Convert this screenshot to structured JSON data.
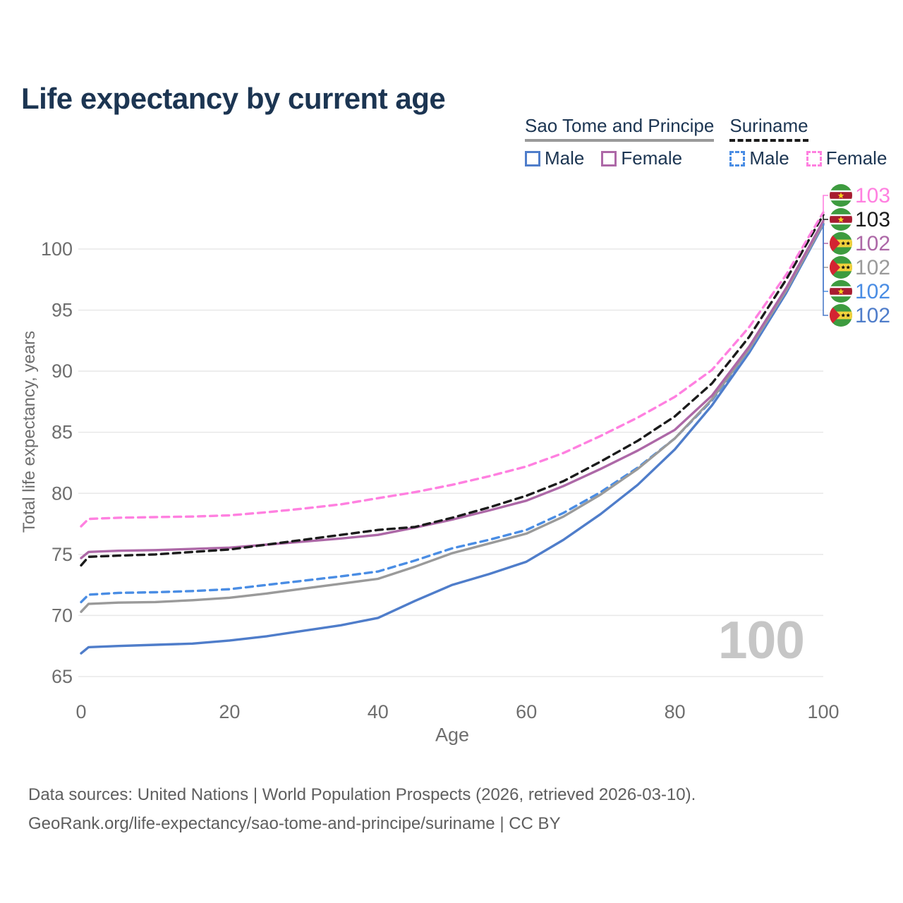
{
  "title": "Life expectancy by current age",
  "watermark": "100",
  "footer": {
    "line1": "Data sources: United Nations | World Population Prospects (2026, retrieved 2026-03-10).",
    "line2": "GeoRank.org/life-expectancy/sao-tome-and-principe/suriname | CC BY"
  },
  "legend": {
    "groups": [
      {
        "name": "Sao Tome and Principe",
        "line_style": "solid",
        "underline_color": "#9a9a9a",
        "items": [
          {
            "label": "Male",
            "color": "#4f7dca"
          },
          {
            "label": "Female",
            "color": "#ad68a7"
          }
        ]
      },
      {
        "name": "Suriname",
        "line_style": "dashed",
        "underline_color": "#1b1b1b",
        "items": [
          {
            "label": "Male",
            "color": "#4a8de4"
          },
          {
            "label": "Female",
            "color": "#ff80e0"
          }
        ]
      }
    ]
  },
  "chart_data": {
    "type": "line",
    "title": "Life expectancy by current age",
    "xlabel": "Age",
    "ylabel": "Total life expectancy, years",
    "xlim": [
      0,
      100
    ],
    "ylim": [
      63.5,
      104.5
    ],
    "xticks": [
      0,
      20,
      40,
      60,
      80,
      100
    ],
    "yticks": [
      65,
      70,
      75,
      80,
      85,
      90,
      95,
      100
    ],
    "grid": "horizontal-only",
    "legend_position": "top-right",
    "x": [
      0,
      1,
      5,
      10,
      15,
      20,
      25,
      30,
      35,
      40,
      45,
      50,
      55,
      60,
      65,
      70,
      75,
      80,
      85,
      90,
      95,
      100
    ],
    "series": [
      {
        "name": "Suriname Female",
        "country": "Suriname",
        "sex": "female",
        "flag": "suriname",
        "color": "#ff80e0",
        "dash": true,
        "end_label": "103",
        "values": [
          77.3,
          77.9,
          78.0,
          78.05,
          78.1,
          78.2,
          78.45,
          78.75,
          79.1,
          79.6,
          80.1,
          80.7,
          81.4,
          82.2,
          83.3,
          84.7,
          86.2,
          87.9,
          90.1,
          93.6,
          97.9,
          103.0
        ]
      },
      {
        "name": "Suriname Both sexes",
        "country": "Suriname",
        "sex": "both",
        "flag": "suriname",
        "color": "#1b1b1b",
        "dash": true,
        "end_label": "103",
        "values": [
          74.1,
          74.8,
          74.9,
          75.0,
          75.2,
          75.4,
          75.8,
          76.2,
          76.6,
          77.0,
          77.25,
          78.0,
          78.85,
          79.8,
          81.0,
          82.6,
          84.3,
          86.3,
          89.0,
          92.8,
          97.5,
          102.8
        ]
      },
      {
        "name": "Sao Tome and Principe Female",
        "country": "Sao Tome and Principe",
        "sex": "female",
        "flag": "sao_tome",
        "color": "#ad68a7",
        "dash": false,
        "end_label": "102",
        "values": [
          74.7,
          75.2,
          75.3,
          75.35,
          75.45,
          75.55,
          75.8,
          76.05,
          76.3,
          76.6,
          77.2,
          77.85,
          78.6,
          79.4,
          80.6,
          82.0,
          83.5,
          85.2,
          88.0,
          92.0,
          96.8,
          102.3
        ]
      },
      {
        "name": "Sao Tome and Principe Both sexes",
        "country": "Sao Tome and Principe",
        "sex": "both",
        "flag": "sao_tome",
        "color": "#9a9a9a",
        "dash": false,
        "end_label": "102",
        "values": [
          70.3,
          70.95,
          71.05,
          71.1,
          71.25,
          71.45,
          71.8,
          72.2,
          72.6,
          73.0,
          74.0,
          75.1,
          75.9,
          76.7,
          78.1,
          79.9,
          82.0,
          84.5,
          87.7,
          91.8,
          96.6,
          102.1
        ]
      },
      {
        "name": "Suriname Male",
        "country": "Suriname",
        "sex": "male",
        "flag": "suriname",
        "color": "#4a8de4",
        "dash": true,
        "end_label": "102",
        "values": [
          71.1,
          71.7,
          71.85,
          71.9,
          72.0,
          72.15,
          72.5,
          72.85,
          73.2,
          73.6,
          74.5,
          75.5,
          76.2,
          77.0,
          78.4,
          80.1,
          82.1,
          84.5,
          87.6,
          91.7,
          96.6,
          102.1
        ]
      },
      {
        "name": "Sao Tome and Principe Male",
        "country": "Sao Tome and Principe",
        "sex": "male",
        "flag": "sao_tome",
        "color": "#4f7dca",
        "dash": false,
        "end_label": "102",
        "values": [
          66.9,
          67.4,
          67.5,
          67.6,
          67.7,
          67.95,
          68.3,
          68.75,
          69.2,
          69.8,
          71.2,
          72.5,
          73.4,
          74.4,
          76.2,
          78.3,
          80.7,
          83.6,
          87.2,
          91.5,
          96.4,
          102.0
        ]
      }
    ]
  }
}
